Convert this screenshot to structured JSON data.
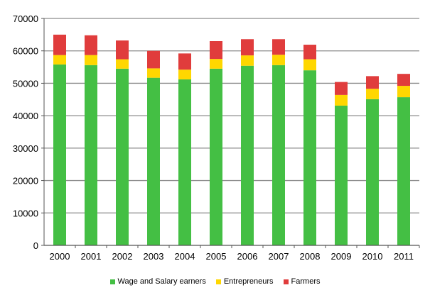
{
  "chart_data": {
    "type": "bar",
    "stacked": true,
    "title": "",
    "xlabel": "",
    "ylabel": "",
    "ylim": [
      0,
      70000
    ],
    "yticks": [
      0,
      10000,
      20000,
      30000,
      40000,
      50000,
      60000,
      70000
    ],
    "grid": "horizontal",
    "legend": "bottom",
    "categories": [
      "2000",
      "2001",
      "2002",
      "2003",
      "2004",
      "2005",
      "2006",
      "2007",
      "2008",
      "2009",
      "2010",
      "2011"
    ],
    "series": [
      {
        "name": "Wage and Salary earners",
        "color": "#44bf44",
        "values": [
          55800,
          55600,
          54500,
          51700,
          51200,
          54500,
          55400,
          55600,
          54000,
          43100,
          45100,
          45700
        ]
      },
      {
        "name": "Entrepreneurs",
        "color": "#ffd700",
        "values": [
          2900,
          3100,
          2900,
          2900,
          3000,
          3000,
          3200,
          3200,
          3400,
          3300,
          3200,
          3500
        ]
      },
      {
        "name": "Farmers",
        "color": "#e03c3c",
        "values": [
          6300,
          6100,
          5800,
          5400,
          5000,
          5500,
          5000,
          4800,
          4500,
          4000,
          3900,
          3700
        ]
      }
    ]
  }
}
